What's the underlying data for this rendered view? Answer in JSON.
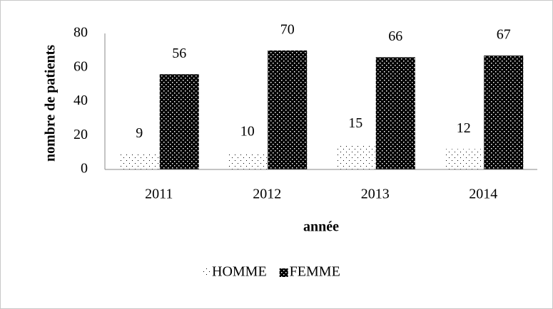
{
  "chart_data": {
    "type": "bar",
    "categories": [
      "2011",
      "2012",
      "2013",
      "2014"
    ],
    "series": [
      {
        "name": "HOMME",
        "color": "#ffffff",
        "values": [
          9,
          10,
          15,
          12
        ]
      },
      {
        "name": "FEMME",
        "color": "#000000",
        "values": [
          56,
          70,
          66,
          67
        ]
      }
    ],
    "ylabel": "nombre de patients",
    "xlabel": "année",
    "ylim": [
      0,
      80
    ],
    "yticks": [
      0,
      20,
      40,
      60,
      80
    ],
    "grid": false,
    "legend": "bottom"
  }
}
